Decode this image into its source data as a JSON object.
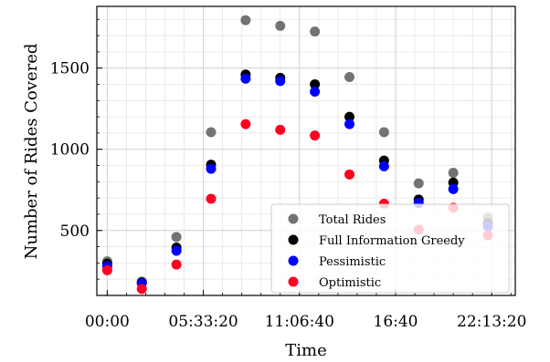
{
  "chart_data": {
    "type": "scatter",
    "xlabel": "Time",
    "ylabel": "Number of Rides Covered",
    "x_ticks": [
      "00:00",
      "05:33:20",
      "11:06:40",
      "16:40",
      "22:13:20"
    ],
    "y_ticks": [
      500,
      1000,
      1500
    ],
    "xlim": [
      "-00:36",
      "23:35"
    ],
    "ylim": [
      100,
      1880
    ],
    "grid": true,
    "legend_position": "lower right",
    "x": [
      "00:00",
      "02:00",
      "04:00",
      "06:00",
      "08:00",
      "10:00",
      "12:00",
      "14:00",
      "16:00",
      "18:00",
      "20:00",
      "22:00"
    ],
    "series": [
      {
        "name": "Total Rides",
        "color": "#737373",
        "values": [
          310,
          185,
          460,
          1105,
          1795,
          1760,
          1725,
          1445,
          1105,
          790,
          855,
          580
        ]
      },
      {
        "name": "Full Information Greedy",
        "color": "#000000",
        "values": [
          295,
          180,
          395,
          905,
          1460,
          1440,
          1400,
          1200,
          930,
          690,
          795,
          545
        ]
      },
      {
        "name": "Pessimistic",
        "color": "#0000ff",
        "values": [
          280,
          175,
          375,
          880,
          1435,
          1420,
          1355,
          1155,
          895,
          670,
          755,
          525
        ]
      },
      {
        "name": "Optimistic",
        "color": "#ff0022",
        "values": [
          255,
          140,
          290,
          695,
          1155,
          1120,
          1085,
          845,
          665,
          505,
          640,
          470
        ]
      }
    ]
  }
}
